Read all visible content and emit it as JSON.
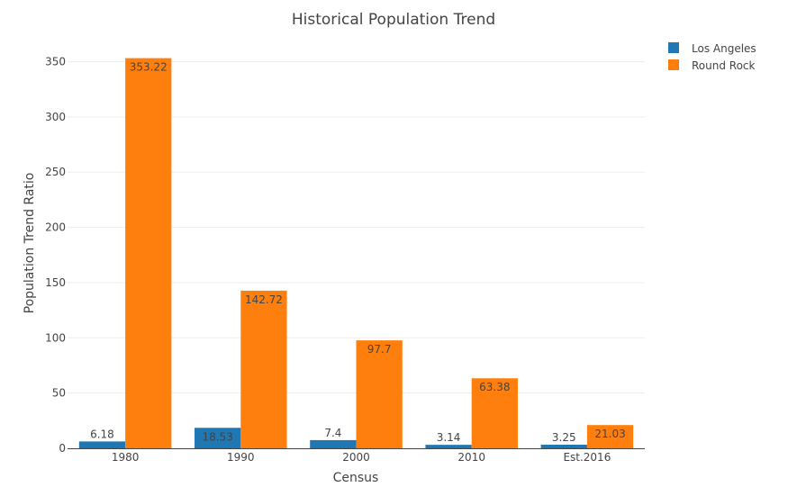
{
  "chart_data": {
    "type": "bar",
    "title": "Historical Population Trend",
    "xlabel": "Census",
    "ylabel": "Population Trend Ratio",
    "categories": [
      "1980",
      "1990",
      "2000",
      "2010",
      "Est.2016"
    ],
    "ylim": [
      0,
      370
    ],
    "yticks": [
      0,
      50,
      100,
      150,
      200,
      250,
      300,
      350
    ],
    "grid": true,
    "legend_position": "top-right",
    "series": [
      {
        "name": "Los Angeles",
        "color": "#1f77b4",
        "values": [
          6.18,
          18.53,
          7.4,
          3.14,
          3.25
        ]
      },
      {
        "name": "Round Rock",
        "color": "#ff7f0e",
        "values": [
          353.22,
          142.72,
          97.7,
          63.38,
          21.03
        ]
      }
    ]
  }
}
